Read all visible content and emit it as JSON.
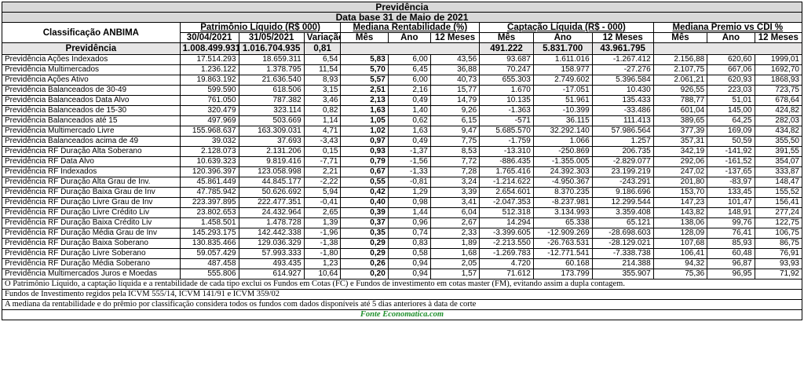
{
  "table": {
    "title": "Previdência",
    "subtitle": "Data base 31 de Maio de 2021",
    "classification_header": "Classificação ANBIMA",
    "groups": {
      "pl": "Patrimônio Líquido (R$ 000)",
      "rent": "Mediana Rentabilidade (%)",
      "cap": "Captação Líquida (R$ - 000)",
      "premio": "Mediana Premio vs CDI %"
    },
    "subheaders": {
      "pl_d1": "30/04/2021",
      "pl_d2": "31/05/2021",
      "pl_var": "Variação %",
      "rent_mes": "Mês",
      "rent_ano": "Ano",
      "rent_12": "12 Meses",
      "cap_mes": "Mês",
      "cap_ano": "Ano",
      "cap_12": "12 Meses",
      "prem_mes": "Mês",
      "prem_ano": "Ano",
      "prem_12": "12 Meses"
    },
    "total": {
      "name": "Previdência",
      "pl_d1": "1.008.499.931",
      "pl_d2": "1.016.704.935",
      "pl_var": "0,81",
      "cap_mes": "491.222",
      "cap_ano": "5.831.700",
      "cap_12": "43.961.795"
    },
    "rows": [
      {
        "name": "Previdência Ações Indexados",
        "pl_d1": "17.514.293",
        "pl_d2": "18.659.311",
        "pl_var": "6,54",
        "rent_mes": "5,83",
        "rent_ano": "6,00",
        "rent_12": "43,56",
        "cap_mes": "93.687",
        "cap_ano": "1.611.016",
        "cap_12": "-1.267.412",
        "prem_mes": "2.156,88",
        "prem_ano": "620,60",
        "prem_12": "1999,01"
      },
      {
        "name": "Previdência Multimercados",
        "pl_d1": "1.236.122",
        "pl_d2": "1.378.795",
        "pl_var": "11,54",
        "rent_mes": "5,70",
        "rent_ano": "6,45",
        "rent_12": "36,88",
        "cap_mes": "70.247",
        "cap_ano": "158.977",
        "cap_12": "-27.276",
        "prem_mes": "2.107,75",
        "prem_ano": "667,06",
        "prem_12": "1692,70"
      },
      {
        "name": "Previdência Ações Ativo",
        "pl_d1": "19.863.192",
        "pl_d2": "21.636.540",
        "pl_var": "8,93",
        "rent_mes": "5,57",
        "rent_ano": "6,00",
        "rent_12": "40,73",
        "cap_mes": "655.303",
        "cap_ano": "2.749.602",
        "cap_12": "5.396.584",
        "prem_mes": "2.061,21",
        "prem_ano": "620,93",
        "prem_12": "1868,93"
      },
      {
        "name": "Previdência Balanceados de 30-49",
        "pl_d1": "599.590",
        "pl_d2": "618.506",
        "pl_var": "3,15",
        "rent_mes": "2,51",
        "rent_ano": "2,16",
        "rent_12": "15,77",
        "cap_mes": "1.670",
        "cap_ano": "-17.051",
        "cap_12": "10.430",
        "prem_mes": "926,55",
        "prem_ano": "223,03",
        "prem_12": "723,75"
      },
      {
        "name": "Previdência Balanceados Data Alvo",
        "pl_d1": "761.050",
        "pl_d2": "787.382",
        "pl_var": "3,46",
        "rent_mes": "2,13",
        "rent_ano": "0,49",
        "rent_12": "14,79",
        "cap_mes": "10.135",
        "cap_ano": "51.961",
        "cap_12": "135.433",
        "prem_mes": "788,77",
        "prem_ano": "51,01",
        "prem_12": "678,64"
      },
      {
        "name": "Previdência Balanceados de 15-30",
        "pl_d1": "320.479",
        "pl_d2": "323.114",
        "pl_var": "0,82",
        "rent_mes": "1,63",
        "rent_ano": "1,40",
        "rent_12": "9,26",
        "cap_mes": "-1.363",
        "cap_ano": "-10.399",
        "cap_12": "-33.486",
        "prem_mes": "601,04",
        "prem_ano": "145,00",
        "prem_12": "424,82"
      },
      {
        "name": "Previdência Balanceados até 15",
        "pl_d1": "497.969",
        "pl_d2": "503.669",
        "pl_var": "1,14",
        "rent_mes": "1,05",
        "rent_ano": "0,62",
        "rent_12": "6,15",
        "cap_mes": "-571",
        "cap_ano": "36.115",
        "cap_12": "111.413",
        "prem_mes": "389,65",
        "prem_ano": "64,25",
        "prem_12": "282,03"
      },
      {
        "name": "Previdência Multimercado Livre",
        "pl_d1": "155.968.637",
        "pl_d2": "163.309.031",
        "pl_var": "4,71",
        "rent_mes": "1,02",
        "rent_ano": "1,63",
        "rent_12": "9,47",
        "cap_mes": "5.685.570",
        "cap_ano": "32.292.140",
        "cap_12": "57.986.564",
        "prem_mes": "377,39",
        "prem_ano": "169,09",
        "prem_12": "434,82"
      },
      {
        "name": "Previdência Balanceados acima de 49",
        "pl_d1": "39.032",
        "pl_d2": "37.693",
        "pl_var": "-3,43",
        "rent_mes": "0,97",
        "rent_ano": "0,49",
        "rent_12": "7,75",
        "cap_mes": "-1.759",
        "cap_ano": "1.066",
        "cap_12": "1.257",
        "prem_mes": "357,31",
        "prem_ano": "50,59",
        "prem_12": "355,50"
      },
      {
        "name": "Previdência RF Duração Alta Soberano",
        "pl_d1": "2.128.073",
        "pl_d2": "2.131.206",
        "pl_var": "0,15",
        "rent_mes": "0,93",
        "rent_ano": "-1,37",
        "rent_12": "8,53",
        "cap_mes": "-13.310",
        "cap_ano": "-250.869",
        "cap_12": "206.735",
        "prem_mes": "342,19",
        "prem_ano": "-141,92",
        "prem_12": "391,55"
      },
      {
        "name": "Previdência RF Data Alvo",
        "pl_d1": "10.639.323",
        "pl_d2": "9.819.416",
        "pl_var": "-7,71",
        "rent_mes": "0,79",
        "rent_ano": "-1,56",
        "rent_12": "7,72",
        "cap_mes": "-886.435",
        "cap_ano": "-1.355.005",
        "cap_12": "-2.829.077",
        "prem_mes": "292,06",
        "prem_ano": "-161,52",
        "prem_12": "354,07"
      },
      {
        "name": "Previdência RF Indexados",
        "pl_d1": "120.396.397",
        "pl_d2": "123.058.998",
        "pl_var": "2,21",
        "rent_mes": "0,67",
        "rent_ano": "-1,33",
        "rent_12": "7,28",
        "cap_mes": "1.765.416",
        "cap_ano": "24.392.303",
        "cap_12": "23.199.219",
        "prem_mes": "247,02",
        "prem_ano": "-137,65",
        "prem_12": "333,87"
      },
      {
        "name": "Previdência RF Duração Alta Grau de Inv.",
        "pl_d1": "45.861.449",
        "pl_d2": "44.845.177",
        "pl_var": "-2,22",
        "rent_mes": "0,55",
        "rent_ano": "-0,81",
        "rent_12": "3,24",
        "cap_mes": "-1.214.622",
        "cap_ano": "-4.950.367",
        "cap_12": "-243.291",
        "prem_mes": "201,80",
        "prem_ano": "-83,97",
        "prem_12": "148,47"
      },
      {
        "name": "Previdência RF Duração Baixa Grau de Inv",
        "pl_d1": "47.785.942",
        "pl_d2": "50.626.692",
        "pl_var": "5,94",
        "rent_mes": "0,42",
        "rent_ano": "1,29",
        "rent_12": "3,39",
        "cap_mes": "2.654.601",
        "cap_ano": "8.370.235",
        "cap_12": "9.186.696",
        "prem_mes": "153,70",
        "prem_ano": "133,45",
        "prem_12": "155,52"
      },
      {
        "name": "Previdência RF Duração Livre Grau de Inv",
        "pl_d1": "223.397.895",
        "pl_d2": "222.477.351",
        "pl_var": "-0,41",
        "rent_mes": "0,40",
        "rent_ano": "0,98",
        "rent_12": "3,41",
        "cap_mes": "-2.047.353",
        "cap_ano": "-8.237.981",
        "cap_12": "12.299.544",
        "prem_mes": "147,23",
        "prem_ano": "101,47",
        "prem_12": "156,41"
      },
      {
        "name": "Previdência RF Duração Livre Crédito Liv",
        "pl_d1": "23.802.653",
        "pl_d2": "24.432.964",
        "pl_var": "2,65",
        "rent_mes": "0,39",
        "rent_ano": "1,44",
        "rent_12": "6,04",
        "cap_mes": "512.318",
        "cap_ano": "3.134.993",
        "cap_12": "3.359.408",
        "prem_mes": "143,82",
        "prem_ano": "148,91",
        "prem_12": "277,24"
      },
      {
        "name": "Previdência RF Duração Baixa Crédito Liv",
        "pl_d1": "1.458.501",
        "pl_d2": "1.478.728",
        "pl_var": "1,39",
        "rent_mes": "0,37",
        "rent_ano": "0,96",
        "rent_12": "2,67",
        "cap_mes": "14.294",
        "cap_ano": "65.338",
        "cap_12": "65.121",
        "prem_mes": "138,06",
        "prem_ano": "99,76",
        "prem_12": "122,75"
      },
      {
        "name": "Previdência RF Duração Média Grau de Inv",
        "pl_d1": "145.293.175",
        "pl_d2": "142.442.338",
        "pl_var": "-1,96",
        "rent_mes": "0,35",
        "rent_ano": "0,74",
        "rent_12": "2,33",
        "cap_mes": "-3.399.605",
        "cap_ano": "-12.909.269",
        "cap_12": "-28.698.603",
        "prem_mes": "128,09",
        "prem_ano": "76,41",
        "prem_12": "106,75"
      },
      {
        "name": "Previdência RF Duração Baixa Soberano",
        "pl_d1": "130.835.466",
        "pl_d2": "129.036.329",
        "pl_var": "-1,38",
        "rent_mes": "0,29",
        "rent_ano": "0,83",
        "rent_12": "1,89",
        "cap_mes": "-2.213.550",
        "cap_ano": "-26.763.531",
        "cap_12": "-28.129.021",
        "prem_mes": "107,68",
        "prem_ano": "85,93",
        "prem_12": "86,75"
      },
      {
        "name": "Previdência RF Duração Livre Soberano",
        "pl_d1": "59.057.429",
        "pl_d2": "57.993.333",
        "pl_var": "-1,80",
        "rent_mes": "0,29",
        "rent_ano": "0,58",
        "rent_12": "1,68",
        "cap_mes": "-1.269.783",
        "cap_ano": "-12.771.541",
        "cap_12": "-7.338.738",
        "prem_mes": "106,41",
        "prem_ano": "60,48",
        "prem_12": "76,91"
      },
      {
        "name": "Previdência RF Duração Média Soberano",
        "pl_d1": "487.458",
        "pl_d2": "493.435",
        "pl_var": "1,23",
        "rent_mes": "0,26",
        "rent_ano": "0,94",
        "rent_12": "2,05",
        "cap_mes": "4.720",
        "cap_ano": "60.168",
        "cap_12": "214.388",
        "prem_mes": "94,32",
        "prem_ano": "96,87",
        "prem_12": "93,93"
      },
      {
        "name": "Previdência Multimercados Juros e Moedas",
        "pl_d1": "555.806",
        "pl_d2": "614.927",
        "pl_var": "10,64",
        "rent_mes": "0,20",
        "rent_ano": "0,94",
        "rent_12": "1,57",
        "cap_mes": "71.612",
        "cap_ano": "173.799",
        "cap_12": "355.907",
        "prem_mes": "75,36",
        "prem_ano": "96,95",
        "prem_12": "71,92"
      }
    ],
    "notes": [
      "O Patrimônio Líquido, a captação líquida e a rentabilidade de cada tipo exclui os Fundos em Cotas (FC) e Fundos de investimento em cotas master (FM), evitando assim a dupla contagem.",
      "Fundos de Investimento regidos pela ICVM 555/14, ICVM 141/91 e ICVM 359/02",
      "A mediana da rentabilidade  e do prêmio por classificação considera todos os fundos com dados disponíveis até 5 dias anteriores à data de corte"
    ],
    "source": "Fonte Economatica.com"
  }
}
